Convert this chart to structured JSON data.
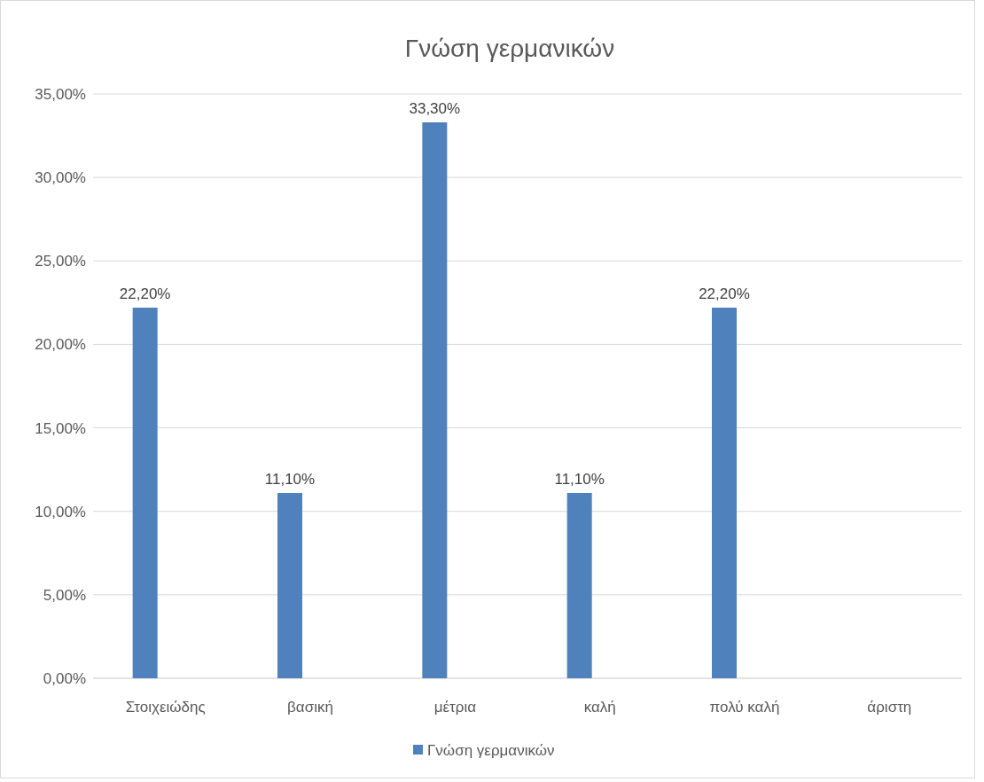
{
  "chart_data": {
    "type": "bar",
    "title": "Γνώση γερμανικών",
    "categories": [
      "Στοιχειώδης",
      "βασική",
      "μέτρια",
      "καλή",
      "πολύ καλή",
      "άριστη"
    ],
    "series": [
      {
        "name": "Γνώση γερμανικών",
        "color": "#4f81bd",
        "values": [
          22.2,
          11.1,
          33.3,
          11.1,
          22.2,
          null
        ],
        "value_labels": [
          "22,20%",
          "11,10%",
          "33,30%",
          "11,10%",
          "22,20%",
          null
        ]
      }
    ],
    "ylim": [
      0,
      35
    ],
    "yticks": [
      {
        "value": 0,
        "label": "0,00%"
      },
      {
        "value": 5,
        "label": "5,00%"
      },
      {
        "value": 10,
        "label": "10,00%"
      },
      {
        "value": 15,
        "label": "15,00%"
      },
      {
        "value": 20,
        "label": "20,00%"
      },
      {
        "value": 25,
        "label": "25,00%"
      },
      {
        "value": 30,
        "label": "30,00%"
      },
      {
        "value": 35,
        "label": "35,00%"
      }
    ],
    "grid": "y",
    "legend": "bottom"
  }
}
